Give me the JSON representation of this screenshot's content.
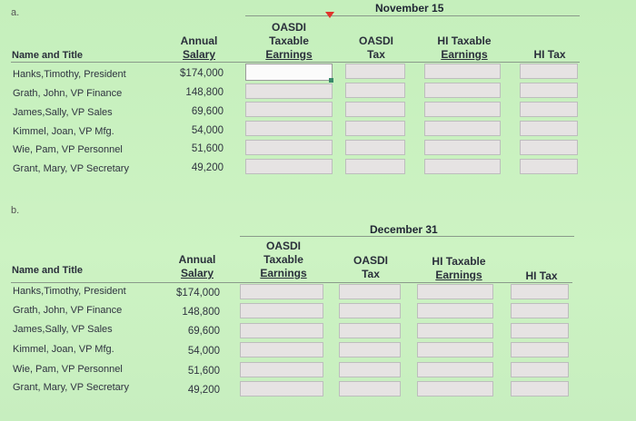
{
  "part_a": {
    "label": "a.",
    "date": "November 15",
    "headers": {
      "name_title": "Name and Title",
      "annual_salary": [
        "Annual",
        "Salary"
      ],
      "oasdi_taxable": [
        "OASDI",
        "Taxable",
        "Earnings"
      ],
      "oasdi_tax": [
        "OASDI",
        "Tax"
      ],
      "hi_taxable": [
        "HI Taxable",
        "Earnings"
      ],
      "hi_tax": [
        "HI Tax"
      ]
    },
    "rows": [
      {
        "name": "Hanks,Timothy, President",
        "salary": "$174,000"
      },
      {
        "name": "Grath, John, VP Finance",
        "salary": "148,800"
      },
      {
        "name": "James,Sally, VP Sales",
        "salary": "69,600"
      },
      {
        "name": "Kimmel, Joan, VP Mfg.",
        "salary": "54,000"
      },
      {
        "name": "Wie, Pam, VP Personnel",
        "salary": "51,600"
      },
      {
        "name": "Grant, Mary, VP Secretary",
        "salary": "49,200"
      }
    ]
  },
  "part_b": {
    "label": "b.",
    "date": "December 31",
    "headers": {
      "name_title": "Name and Title",
      "annual_salary": [
        "Annual",
        "Salary"
      ],
      "oasdi_taxable": [
        "OASDI",
        "Taxable",
        "Earnings"
      ],
      "oasdi_tax": [
        "OASDI",
        "Tax"
      ],
      "hi_taxable": [
        "HI Taxable",
        "Earnings"
      ],
      "hi_tax": [
        "HI Tax"
      ]
    },
    "rows": [
      {
        "name": "Hanks,Timothy, President",
        "salary": "$174,000"
      },
      {
        "name": "Grath, John, VP Finance",
        "salary": "148,800"
      },
      {
        "name": "James,Sally, VP Sales",
        "salary": "69,600"
      },
      {
        "name": "Kimmel, Joan, VP Mfg.",
        "salary": "54,000"
      },
      {
        "name": "Wie, Pam, VP Personnel",
        "salary": "51,600"
      },
      {
        "name": "Grant, Mary, VP Secretary",
        "salary": "49,200"
      }
    ]
  },
  "colors": {
    "background": "#c9f0c0",
    "input_cell": "#e6e3e3",
    "cursor": "#e0342c"
  }
}
